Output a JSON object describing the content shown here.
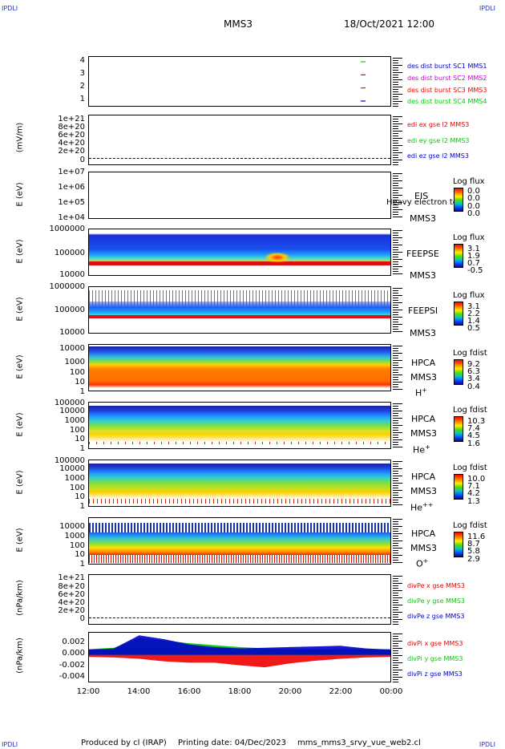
{
  "corner_label": "IPDLI",
  "header": {
    "spacecraft": "MMS3",
    "datetime": "18/Oct/2021 12:00"
  },
  "footer": {
    "produced": "Produced by cl (IRAP)",
    "printing": "Printing date: 04/Dec/2023",
    "file": "mms_mms3_srvy_vue_web2.cl"
  },
  "colors": {
    "red": "#ee0000",
    "green": "#00cc00",
    "blue": "#0000cc",
    "magenta": "#cc00cc"
  },
  "x_axis": {
    "ticks": [
      "12:00",
      "14:00",
      "16:00",
      "18:00",
      "20:00",
      "22:00",
      "00:00"
    ]
  },
  "chart_data": [
    {
      "type": "scatter",
      "name": "burst",
      "yticks": [
        "4",
        "3",
        "2",
        "1"
      ],
      "ylim": [
        1,
        4
      ],
      "legend": [
        "des dist burst SC1 MMS1",
        "des dist burst SC2 MMS2",
        "des dist burst SC3 MMS3",
        "des dist burst SC4 MMS4"
      ],
      "marks": [
        {
          "x": "22:55",
          "y": 4,
          "color": "green"
        },
        {
          "x": "22:55",
          "y": 3,
          "color": "red"
        },
        {
          "x": "22:55",
          "y": 2,
          "color": "magenta"
        },
        {
          "x": "22:55",
          "y": 1,
          "color": "blue"
        }
      ]
    },
    {
      "type": "line",
      "name": "edi",
      "ylabel": "(mV/m)",
      "yticks": [
        "1e+21",
        "8e+20",
        "6e+20",
        "4e+20",
        "2e+20",
        "0"
      ],
      "ylim": [
        0,
        1e+21
      ],
      "legend": [
        "edi ex gse l2 MMS3",
        "edi ey gse l2 MMS3",
        "edi ez gse l2 MMS3"
      ]
    },
    {
      "type": "heatmap",
      "name": "eis",
      "ylabel": "E (eV)",
      "yticks": [
        "1e+07",
        "1e+06",
        "1e+05",
        "1e+04"
      ],
      "instrument": [
        "EIS",
        "MMS3"
      ],
      "overlay": "Heavy electron to",
      "colorbar": {
        "title": "Log flux",
        "values": [
          "0.0",
          "0.0",
          "0.0",
          "0.0"
        ]
      }
    },
    {
      "type": "heatmap",
      "name": "feepse",
      "ylabel": "E (eV)",
      "yticks": [
        "1000000",
        "100000",
        "10000"
      ],
      "instrument": [
        "FEEPSE",
        "MMS3"
      ],
      "colorbar": {
        "title": "Log flux",
        "values": [
          "3.1",
          "1.9",
          "0.7",
          "-0.5"
        ]
      }
    },
    {
      "type": "heatmap",
      "name": "feepsi",
      "ylabel": "E (eV)",
      "yticks": [
        "1000000",
        "100000",
        "10000"
      ],
      "instrument": [
        "FEEPSI",
        "MMS3"
      ],
      "colorbar": {
        "title": "Log flux",
        "values": [
          "3.1",
          "2.2",
          "1.4",
          "0.5"
        ]
      }
    },
    {
      "type": "heatmap",
      "name": "hpca-h",
      "ylabel": "E (eV)",
      "yticks": [
        "10000",
        "1000",
        "100",
        "10",
        "1"
      ],
      "instrument": [
        "HPCA",
        "MMS3"
      ],
      "species": "H",
      "charge": "+",
      "colorbar": {
        "title": "Log fdist",
        "values": [
          "9.2",
          "6.3",
          "3.4",
          "0.4"
        ]
      }
    },
    {
      "type": "heatmap",
      "name": "hpca-he",
      "ylabel": "E (eV)",
      "yticks": [
        "100000",
        "10000",
        "1000",
        "100",
        "10",
        "1"
      ],
      "instrument": [
        "HPCA",
        "MMS3"
      ],
      "species": "He",
      "charge": "+",
      "colorbar": {
        "title": "Log fdist",
        "values": [
          "10.3",
          "7.4",
          "4.5",
          "1.6"
        ]
      }
    },
    {
      "type": "heatmap",
      "name": "hpca-hepp",
      "ylabel": "E (eV)",
      "yticks": [
        "100000",
        "10000",
        "1000",
        "100",
        "10",
        "1"
      ],
      "instrument": [
        "HPCA",
        "MMS3"
      ],
      "species": "He",
      "charge": "++",
      "colorbar": {
        "title": "Log fdist",
        "values": [
          "10.0",
          "7.1",
          "4.2",
          "1.3"
        ]
      }
    },
    {
      "type": "heatmap",
      "name": "hpca-o",
      "ylabel": "E (eV)",
      "yticks": [
        "10000",
        "1000",
        "100",
        "10",
        "1"
      ],
      "instrument": [
        "HPCA",
        "MMS3"
      ],
      "species": "O",
      "charge": "+",
      "colorbar": {
        "title": "Log fdist",
        "values": [
          "11.6",
          "8.7",
          "5.8",
          "2.9"
        ]
      }
    },
    {
      "type": "line",
      "name": "divpe",
      "ylabel": "(nPa/km)",
      "yticks": [
        "1e+21",
        "8e+20",
        "6e+20",
        "4e+20",
        "2e+20",
        "0"
      ],
      "ylim": [
        0,
        1e+21
      ],
      "legend": [
        "divPe x gse MMS3",
        "divPe y gse MMS3",
        "divPe z gse MMS3"
      ]
    },
    {
      "type": "line",
      "name": "divpi",
      "ylabel": "(nPa/km)",
      "yticks": [
        "0.002",
        "0.000",
        "-0.002",
        "-0.004"
      ],
      "ylim": [
        -0.0045,
        0.003
      ],
      "legend": [
        "divPi x gse MMS3",
        "divPi y gse MMS3",
        "divPi z gse MMS3"
      ],
      "series": [
        {
          "name": "divPi x gse MMS3",
          "color": "red",
          "x": [
            "12:00",
            "13:00",
            "14:00",
            "15:00",
            "16:00",
            "17:00",
            "18:00",
            "19:00",
            "20:00",
            "21:00",
            "22:00",
            "23:00",
            "00:00"
          ],
          "y": [
            -0.0003,
            -0.0004,
            -0.0006,
            -0.001,
            -0.0012,
            -0.0012,
            -0.0016,
            -0.0019,
            -0.0013,
            -0.0009,
            -0.0006,
            -0.0004,
            -0.0003
          ]
        },
        {
          "name": "divPi y gse MMS3",
          "color": "green",
          "x": [
            "12:00",
            "13:00",
            "14:00",
            "15:00",
            "16:00",
            "17:00",
            "18:00",
            "19:00",
            "20:00",
            "21:00",
            "22:00",
            "23:00",
            "00:00"
          ],
          "y": [
            0.0001,
            0.0003,
            0.0018,
            0.0014,
            0.001,
            0.0007,
            0.0004,
            0.0002,
            0.0001,
            0.0,
            0.0001,
            0.0001,
            0.0001
          ]
        },
        {
          "name": "divPi z gse MMS3",
          "color": "blue",
          "x": [
            "12:00",
            "13:00",
            "14:00",
            "15:00",
            "16:00",
            "17:00",
            "18:00",
            "19:00",
            "20:00",
            "21:00",
            "22:00",
            "23:00",
            "00:00"
          ],
          "y": [
            0.0,
            0.0002,
            0.0022,
            0.0016,
            0.0008,
            0.0004,
            0.0002,
            0.0003,
            0.0004,
            0.0005,
            0.0006,
            0.0002,
            0.0
          ]
        }
      ]
    }
  ]
}
